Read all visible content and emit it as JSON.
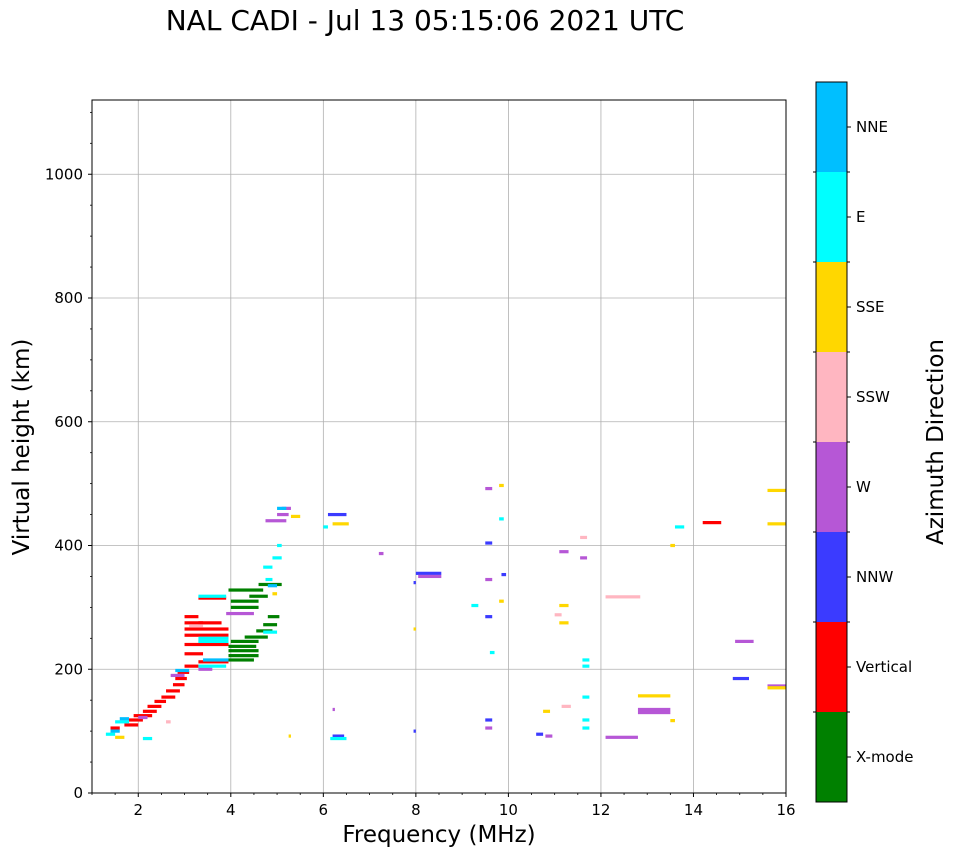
{
  "chart_data": {
    "type": "scatter",
    "title": "NAL CADI - Jul 13 05:15:06 2021 UTC",
    "xlabel": "Frequency (MHz)",
    "ylabel": "Virtual height (km)",
    "xlim": [
      1,
      16
    ],
    "ylim": [
      0,
      1120
    ],
    "xticks": [
      2,
      4,
      6,
      8,
      10,
      12,
      14,
      16
    ],
    "yticks": [
      0,
      200,
      400,
      600,
      800,
      1000
    ],
    "grid": true,
    "colorbar": {
      "title": "Azimuth Direction",
      "categories": [
        {
          "label": "X-mode",
          "color": "#008000"
        },
        {
          "label": "Vertical",
          "color": "#ff0000"
        },
        {
          "label": "NNW",
          "color": "#3b3bff"
        },
        {
          "label": "W",
          "color": "#b657d6"
        },
        {
          "label": "SSW",
          "color": "#ffb6c1"
        },
        {
          "label": "SSE",
          "color": "#ffd700"
        },
        {
          "label": "E",
          "color": "#00ffff"
        },
        {
          "label": "NNE",
          "color": "#00bfff"
        }
      ]
    },
    "series": [
      {
        "name": "X-mode",
        "segments": [
          [
            3.95,
            4.5,
            215
          ],
          [
            3.95,
            4.6,
            222
          ],
          [
            3.95,
            4.6,
            230
          ],
          [
            3.95,
            4.55,
            237
          ],
          [
            4.0,
            4.6,
            245
          ],
          [
            4.3,
            4.8,
            252
          ],
          [
            4.55,
            4.9,
            262
          ],
          [
            4.7,
            5.0,
            272
          ],
          [
            4.8,
            5.05,
            285
          ],
          [
            4.0,
            4.6,
            300
          ],
          [
            4.0,
            4.6,
            310
          ],
          [
            3.95,
            4.7,
            328
          ],
          [
            4.6,
            5.1,
            337
          ],
          [
            4.4,
            4.8,
            318
          ]
        ]
      },
      {
        "name": "Vertical",
        "segments": [
          [
            1.4,
            1.6,
            105
          ],
          [
            1.7,
            2.0,
            110
          ],
          [
            1.8,
            2.1,
            118
          ],
          [
            1.9,
            2.3,
            125
          ],
          [
            2.1,
            2.4,
            132
          ],
          [
            2.2,
            2.5,
            140
          ],
          [
            2.35,
            2.6,
            148
          ],
          [
            2.5,
            2.8,
            155
          ],
          [
            2.6,
            2.9,
            165
          ],
          [
            2.75,
            3.0,
            175
          ],
          [
            2.8,
            3.05,
            185
          ],
          [
            2.85,
            3.1,
            195
          ],
          [
            3.0,
            3.3,
            205
          ],
          [
            3.3,
            3.95,
            212
          ],
          [
            3.0,
            3.4,
            225
          ],
          [
            3.0,
            3.95,
            240
          ],
          [
            3.0,
            3.95,
            255
          ],
          [
            3.0,
            3.95,
            265
          ],
          [
            3.0,
            3.4,
            275
          ],
          [
            3.0,
            3.3,
            285
          ],
          [
            3.3,
            3.8,
            275
          ],
          [
            3.3,
            3.9,
            315
          ],
          [
            14.2,
            14.6,
            437
          ]
        ]
      },
      {
        "name": "NNW",
        "segments": [
          [
            6.1,
            6.5,
            450
          ],
          [
            6.2,
            6.45,
            92
          ],
          [
            9.5,
            9.65,
            404
          ],
          [
            8.0,
            8.55,
            355
          ],
          [
            7.95,
            8.0,
            340
          ],
          [
            7.95,
            8.0,
            100
          ],
          [
            9.5,
            9.65,
            285
          ],
          [
            9.85,
            9.95,
            353
          ],
          [
            10.6,
            10.75,
            95
          ],
          [
            14.85,
            15.2,
            185
          ],
          [
            9.5,
            9.65,
            118
          ]
        ]
      },
      {
        "name": "W",
        "segments": [
          [
            4.75,
            5.2,
            440
          ],
          [
            5.0,
            5.25,
            450
          ],
          [
            5.1,
            5.3,
            460
          ],
          [
            2.7,
            3.0,
            190
          ],
          [
            3.3,
            3.6,
            200
          ],
          [
            3.3,
            3.7,
            245
          ],
          [
            3.9,
            4.5,
            290
          ],
          [
            7.2,
            7.3,
            387
          ],
          [
            8.05,
            8.55,
            350
          ],
          [
            9.5,
            9.65,
            345
          ],
          [
            9.5,
            9.65,
            492
          ],
          [
            11.1,
            11.3,
            390
          ],
          [
            11.55,
            11.7,
            380
          ],
          [
            12.1,
            12.8,
            90
          ],
          [
            12.8,
            13.5,
            135
          ],
          [
            12.8,
            13.5,
            130
          ],
          [
            14.9,
            15.3,
            245
          ],
          [
            15.6,
            16.0,
            173
          ],
          [
            9.5,
            9.65,
            105
          ],
          [
            10.8,
            10.95,
            92
          ],
          [
            6.2,
            6.25,
            135
          ],
          [
            2.0,
            2.2,
            122
          ]
        ]
      },
      {
        "name": "SSW",
        "segments": [
          [
            12.1,
            12.85,
            317
          ],
          [
            11.15,
            11.35,
            140
          ],
          [
            11.55,
            11.7,
            413
          ],
          [
            2.6,
            2.7,
            115
          ],
          [
            3.1,
            3.4,
            270
          ],
          [
            11.0,
            11.15,
            288
          ]
        ]
      },
      {
        "name": "SSE",
        "segments": [
          [
            5.3,
            5.5,
            447
          ],
          [
            6.2,
            6.55,
            435
          ],
          [
            9.8,
            9.9,
            497
          ],
          [
            9.8,
            9.9,
            310
          ],
          [
            11.1,
            11.3,
            303
          ],
          [
            11.1,
            11.3,
            275
          ],
          [
            10.75,
            10.9,
            132
          ],
          [
            12.8,
            13.5,
            157
          ],
          [
            13.5,
            13.6,
            117
          ],
          [
            13.5,
            13.6,
            400
          ],
          [
            15.6,
            16.0,
            489
          ],
          [
            15.6,
            16.0,
            435
          ],
          [
            15.6,
            16.0,
            170
          ],
          [
            5.25,
            5.3,
            92
          ],
          [
            7.95,
            8.0,
            265
          ],
          [
            4.9,
            5.0,
            322
          ],
          [
            1.5,
            1.7,
            90
          ]
        ]
      },
      {
        "name": "E",
        "segments": [
          [
            1.5,
            1.8,
            115
          ],
          [
            1.3,
            1.5,
            95
          ],
          [
            3.3,
            3.9,
            318
          ],
          [
            3.3,
            3.95,
            250
          ],
          [
            3.3,
            3.95,
            245
          ],
          [
            3.3,
            3.9,
            205
          ],
          [
            4.9,
            5.1,
            380
          ],
          [
            5.0,
            5.1,
            400
          ],
          [
            4.7,
            4.9,
            365
          ],
          [
            4.75,
            4.9,
            345
          ],
          [
            9.2,
            9.35,
            303
          ],
          [
            9.8,
            9.9,
            443
          ],
          [
            9.6,
            9.7,
            227
          ],
          [
            11.6,
            11.75,
            215
          ],
          [
            11.6,
            11.75,
            205
          ],
          [
            11.6,
            11.75,
            155
          ],
          [
            11.6,
            11.75,
            118
          ],
          [
            11.6,
            11.75,
            105
          ],
          [
            13.6,
            13.8,
            430
          ],
          [
            6.15,
            6.5,
            88
          ],
          [
            6.0,
            6.1,
            430
          ],
          [
            2.1,
            2.3,
            88
          ],
          [
            4.7,
            5.0,
            260
          ]
        ]
      },
      {
        "name": "NNE",
        "segments": [
          [
            1.6,
            1.8,
            120
          ],
          [
            2.8,
            3.1,
            198
          ],
          [
            3.4,
            3.95,
            215
          ],
          [
            4.8,
            5.0,
            335
          ],
          [
            5.0,
            5.2,
            460
          ],
          [
            1.4,
            1.6,
            100
          ]
        ]
      }
    ]
  }
}
